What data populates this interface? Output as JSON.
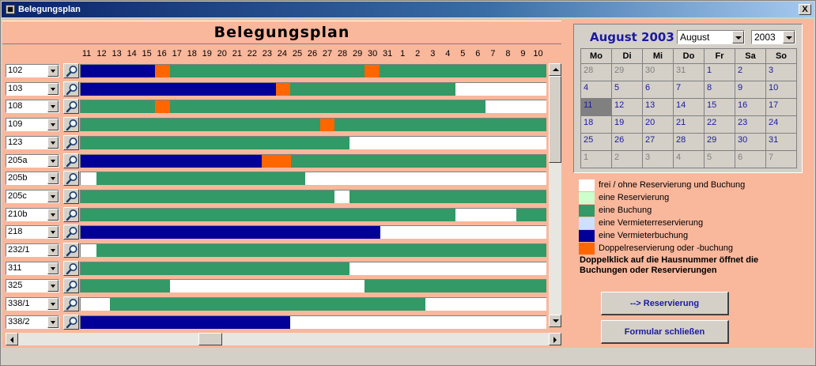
{
  "window": {
    "title": "Belegungsplan",
    "close_label": "X"
  },
  "header": {
    "title": "Belegungsplan"
  },
  "hours": [
    "11",
    "12",
    "13",
    "14",
    "15",
    "16",
    "17",
    "18",
    "19",
    "20",
    "21",
    "22",
    "23",
    "24",
    "25",
    "26",
    "27",
    "28",
    "29",
    "30",
    "31",
    "1",
    "2",
    "3",
    "4",
    "5",
    "6",
    "7",
    "8",
    "9",
    "10"
  ],
  "colors": {
    "free": "#ffffff",
    "reservation": "#ccffcc",
    "booking": "#339966",
    "landlord_reservation": "#cce0ff",
    "landlord_booking": "#000099",
    "double": "#ff6600"
  },
  "rows": [
    {
      "house": "102",
      "segments": [
        {
          "from": 0,
          "to": 0.16,
          "type": "landlord_booking"
        },
        {
          "from": 0.16,
          "to": 0.192,
          "type": "double"
        },
        {
          "from": 0.192,
          "to": 0.61,
          "type": "booking"
        },
        {
          "from": 0.61,
          "to": 0.642,
          "type": "double"
        },
        {
          "from": 0.642,
          "to": 1,
          "type": "booking"
        }
      ]
    },
    {
      "house": "103",
      "segments": [
        {
          "from": 0,
          "to": 0.42,
          "type": "landlord_booking"
        },
        {
          "from": 0.42,
          "to": 0.45,
          "type": "double"
        },
        {
          "from": 0.45,
          "to": 0.805,
          "type": "booking"
        }
      ]
    },
    {
      "house": "108",
      "segments": [
        {
          "from": 0,
          "to": 0.16,
          "type": "booking"
        },
        {
          "from": 0.16,
          "to": 0.192,
          "type": "double"
        },
        {
          "from": 0.192,
          "to": 0.87,
          "type": "booking"
        }
      ]
    },
    {
      "house": "109",
      "segments": [
        {
          "from": 0,
          "to": 0.515,
          "type": "booking"
        },
        {
          "from": 0.515,
          "to": 0.545,
          "type": "double"
        },
        {
          "from": 0.545,
          "to": 1,
          "type": "booking"
        }
      ]
    },
    {
      "house": "123",
      "segments": [
        {
          "from": 0,
          "to": 0.578,
          "type": "booking"
        }
      ]
    },
    {
      "house": "205a",
      "segments": [
        {
          "from": 0,
          "to": 0.388,
          "type": "landlord_booking"
        },
        {
          "from": 0.388,
          "to": 0.452,
          "type": "double"
        },
        {
          "from": 0.452,
          "to": 1,
          "type": "booking"
        }
      ]
    },
    {
      "house": "205b",
      "segments": [
        {
          "from": 0.034,
          "to": 0.483,
          "type": "booking"
        }
      ]
    },
    {
      "house": "205c",
      "segments": [
        {
          "from": 0,
          "to": 0.545,
          "type": "booking"
        },
        {
          "from": 0.578,
          "to": 1,
          "type": "booking"
        }
      ]
    },
    {
      "house": "210b",
      "segments": [
        {
          "from": 0,
          "to": 0.805,
          "type": "booking"
        },
        {
          "from": 0.935,
          "to": 1,
          "type": "booking"
        }
      ]
    },
    {
      "house": "218",
      "segments": [
        {
          "from": 0,
          "to": 0.643,
          "type": "landlord_booking"
        }
      ]
    },
    {
      "house": "232/1",
      "segments": [
        {
          "from": 0.034,
          "to": 1,
          "type": "booking"
        }
      ]
    },
    {
      "house": "311",
      "segments": [
        {
          "from": 0,
          "to": 0.578,
          "type": "booking"
        }
      ]
    },
    {
      "house": "325",
      "segments": [
        {
          "from": 0,
          "to": 0.192,
          "type": "booking"
        },
        {
          "from": 0.61,
          "to": 1,
          "type": "booking"
        }
      ]
    },
    {
      "house": "338/1",
      "segments": [
        {
          "from": 0.062,
          "to": 0.74,
          "type": "booking"
        }
      ]
    },
    {
      "house": "338/2",
      "segments": [
        {
          "from": 0,
          "to": 0.45,
          "type": "landlord_booking"
        }
      ]
    }
  ],
  "calendar": {
    "title": "August 2003",
    "month_value": "August",
    "year_value": "2003",
    "weekdays": [
      "Mo",
      "Di",
      "Mi",
      "Do",
      "Fr",
      "Sa",
      "So"
    ],
    "weeks": [
      [
        {
          "d": "28",
          "o": true
        },
        {
          "d": "29",
          "o": true
        },
        {
          "d": "30",
          "o": true
        },
        {
          "d": "31",
          "o": true
        },
        {
          "d": "1"
        },
        {
          "d": "2"
        },
        {
          "d": "3"
        }
      ],
      [
        {
          "d": "4"
        },
        {
          "d": "5"
        },
        {
          "d": "6"
        },
        {
          "d": "7"
        },
        {
          "d": "8"
        },
        {
          "d": "9"
        },
        {
          "d": "10"
        }
      ],
      [
        {
          "d": "11",
          "t": true
        },
        {
          "d": "12"
        },
        {
          "d": "13"
        },
        {
          "d": "14"
        },
        {
          "d": "15"
        },
        {
          "d": "16"
        },
        {
          "d": "17"
        }
      ],
      [
        {
          "d": "18"
        },
        {
          "d": "19"
        },
        {
          "d": "20"
        },
        {
          "d": "21"
        },
        {
          "d": "22"
        },
        {
          "d": "23"
        },
        {
          "d": "24"
        }
      ],
      [
        {
          "d": "25"
        },
        {
          "d": "26"
        },
        {
          "d": "27"
        },
        {
          "d": "28"
        },
        {
          "d": "29"
        },
        {
          "d": "30"
        },
        {
          "d": "31"
        }
      ],
      [
        {
          "d": "1",
          "o": true
        },
        {
          "d": "2",
          "o": true
        },
        {
          "d": "3",
          "o": true
        },
        {
          "d": "4",
          "o": true
        },
        {
          "d": "5",
          "o": true
        },
        {
          "d": "6",
          "o": true
        },
        {
          "d": "7",
          "o": true
        }
      ]
    ]
  },
  "legend": [
    {
      "type": "free",
      "label": "frei / ohne Reservierung und Buchung"
    },
    {
      "type": "reservation",
      "label": "eine Reservierung"
    },
    {
      "type": "booking",
      "label": "eine Buchung"
    },
    {
      "type": "landlord_reservation",
      "label": "eine Vermieterreservierung"
    },
    {
      "type": "landlord_booking",
      "label": "eine Vermieterbuchung"
    },
    {
      "type": "double",
      "label": "Doppelreservierung oder -buchung"
    }
  ],
  "note": "Doppelklick auf die Hausnummer öffnet die Buchungen oder Reservierungen",
  "buttons": {
    "reserve": "--> Reservierung",
    "close": "Formular schließen"
  }
}
